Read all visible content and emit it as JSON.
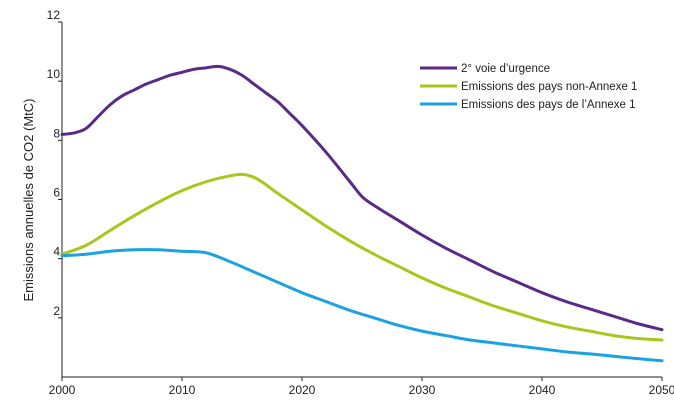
{
  "chart_data": {
    "type": "line",
    "title": "",
    "xlabel": "",
    "ylabel": "Emissions annuelles de CO2 (MtC)",
    "xlim": [
      2000,
      2050
    ],
    "ylim": [
      0,
      12
    ],
    "x_ticks": [
      "2000",
      "2010",
      "2020",
      "2030",
      "2040",
      "2050"
    ],
    "y_ticks": [
      "2",
      "4",
      "6",
      "8",
      "10",
      "12"
    ],
    "grid": false,
    "legend_position": "top-right",
    "series": [
      {
        "name": "2° voie d’urgence",
        "color": "#5a2a86",
        "x": [
          2000,
          2001,
          2002,
          2003,
          2004,
          2005,
          2006,
          2007,
          2008,
          2009,
          2010,
          2011,
          2012,
          2013,
          2014,
          2015,
          2016,
          2017,
          2018,
          2019,
          2020,
          2022,
          2024,
          2025,
          2026,
          2028,
          2030,
          2032,
          2034,
          2036,
          2038,
          2040,
          2042,
          2044,
          2046,
          2048,
          2050
        ],
        "y": [
          8.2,
          8.25,
          8.4,
          8.8,
          9.2,
          9.5,
          9.7,
          9.9,
          10.05,
          10.2,
          10.3,
          10.4,
          10.45,
          10.5,
          10.4,
          10.2,
          9.9,
          9.6,
          9.3,
          8.9,
          8.5,
          7.6,
          6.6,
          6.1,
          5.8,
          5.3,
          4.8,
          4.35,
          3.95,
          3.55,
          3.2,
          2.85,
          2.55,
          2.3,
          2.05,
          1.8,
          1.6
        ]
      },
      {
        "name": "Emissions des pays non-Annexe 1",
        "color": "#a8c61c",
        "x": [
          2000,
          2002,
          2004,
          2006,
          2008,
          2010,
          2012,
          2014,
          2015,
          2016,
          2017,
          2018,
          2020,
          2022,
          2024,
          2026,
          2028,
          2030,
          2032,
          2034,
          2036,
          2038,
          2040,
          2042,
          2044,
          2046,
          2048,
          2050
        ],
        "y": [
          4.15,
          4.45,
          4.95,
          5.45,
          5.9,
          6.3,
          6.6,
          6.8,
          6.85,
          6.75,
          6.5,
          6.2,
          5.65,
          5.1,
          4.6,
          4.15,
          3.75,
          3.35,
          3.0,
          2.7,
          2.4,
          2.15,
          1.9,
          1.7,
          1.55,
          1.4,
          1.3,
          1.25
        ]
      },
      {
        "name": "Emissions des pays de l’Annexe 1",
        "color": "#1ca3df",
        "x": [
          2000,
          2002,
          2004,
          2006,
          2008,
          2010,
          2012,
          2014,
          2016,
          2018,
          2020,
          2022,
          2024,
          2026,
          2028,
          2030,
          2032,
          2034,
          2036,
          2038,
          2040,
          2042,
          2044,
          2046,
          2048,
          2050
        ],
        "y": [
          4.1,
          4.15,
          4.25,
          4.3,
          4.3,
          4.25,
          4.2,
          3.9,
          3.55,
          3.2,
          2.85,
          2.55,
          2.25,
          2.0,
          1.75,
          1.55,
          1.4,
          1.25,
          1.15,
          1.05,
          0.95,
          0.85,
          0.78,
          0.7,
          0.62,
          0.55
        ]
      }
    ]
  }
}
